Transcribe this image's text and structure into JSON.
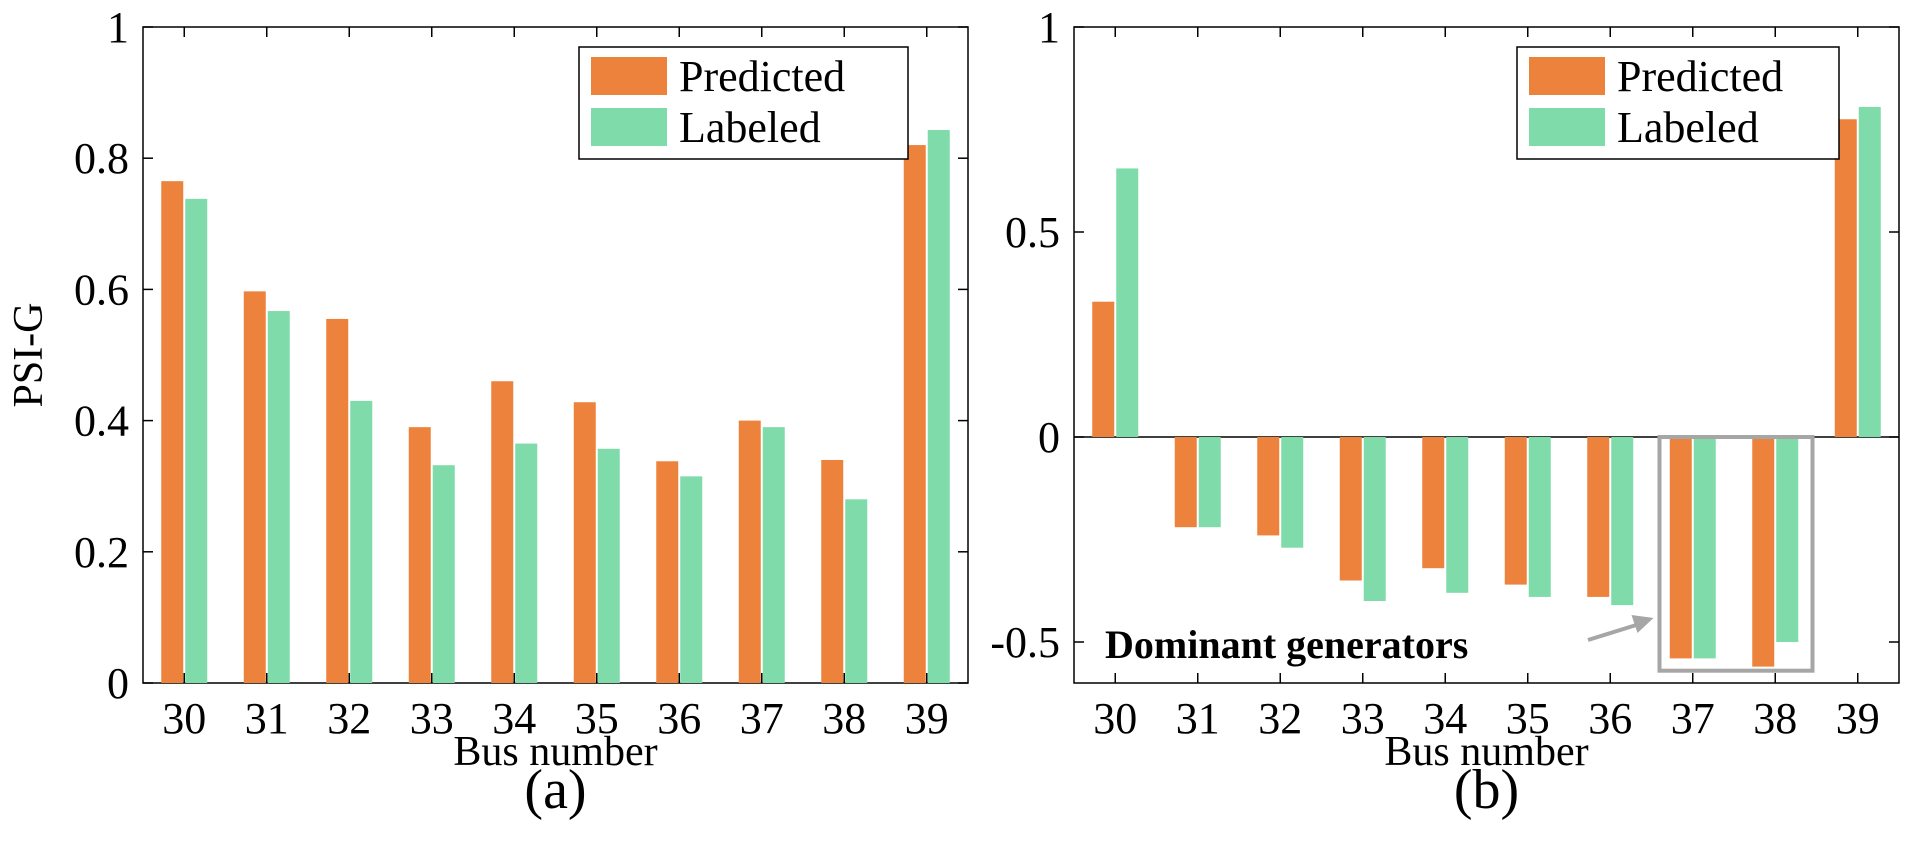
{
  "colors": {
    "predicted": "#ED823C",
    "labeled": "#7FDBA9",
    "axis": "#000000",
    "highlight": "#A6A6A6",
    "arrow": "#A6A6A6"
  },
  "chart_data": [
    {
      "type": "bar",
      "panel_label": "(a)",
      "categories": [
        "30",
        "31",
        "32",
        "33",
        "34",
        "35",
        "36",
        "37",
        "38",
        "39"
      ],
      "series": [
        {
          "name": "Predicted",
          "values": [
            0.765,
            0.597,
            0.555,
            0.39,
            0.46,
            0.428,
            0.338,
            0.4,
            0.34,
            0.82
          ]
        },
        {
          "name": "Labeled",
          "values": [
            0.738,
            0.567,
            0.43,
            0.332,
            0.365,
            0.357,
            0.315,
            0.39,
            0.28,
            0.843
          ]
        }
      ],
      "xlabel": "Bus number",
      "ylabel": "PSI-G",
      "ylim": [
        0,
        1
      ],
      "yticks": [
        0,
        0.2,
        0.4,
        0.6,
        0.8,
        1
      ],
      "ytick_labels": [
        "0",
        "0.2",
        "0.4",
        "0.6",
        "0.8",
        "1"
      ],
      "legend": {
        "position": "top-right",
        "entries": [
          "Predicted",
          "Labeled"
        ]
      }
    },
    {
      "type": "bar",
      "panel_label": "(b)",
      "categories": [
        "30",
        "31",
        "32",
        "33",
        "34",
        "35",
        "36",
        "37",
        "38",
        "39"
      ],
      "series": [
        {
          "name": "Predicted",
          "values": [
            0.33,
            -0.22,
            -0.24,
            -0.35,
            -0.32,
            -0.36,
            -0.39,
            -0.54,
            -0.56,
            0.775
          ]
        },
        {
          "name": "Labeled",
          "values": [
            0.655,
            -0.22,
            -0.27,
            -0.4,
            -0.38,
            -0.39,
            -0.41,
            -0.54,
            -0.5,
            0.805
          ]
        }
      ],
      "xlabel": "Bus number",
      "ylabel": "",
      "ylim": [
        -0.6,
        1
      ],
      "yticks": [
        -0.5,
        0,
        0.5,
        1
      ],
      "ytick_labels": [
        "-0.5",
        "0",
        "0.5",
        "1"
      ],
      "zero_line": true,
      "legend": {
        "position": "top-right",
        "entries": [
          "Predicted",
          "Labeled"
        ]
      },
      "annotation": {
        "text": "Dominant generators",
        "highlighted_categories": [
          "37",
          "38"
        ]
      }
    }
  ]
}
